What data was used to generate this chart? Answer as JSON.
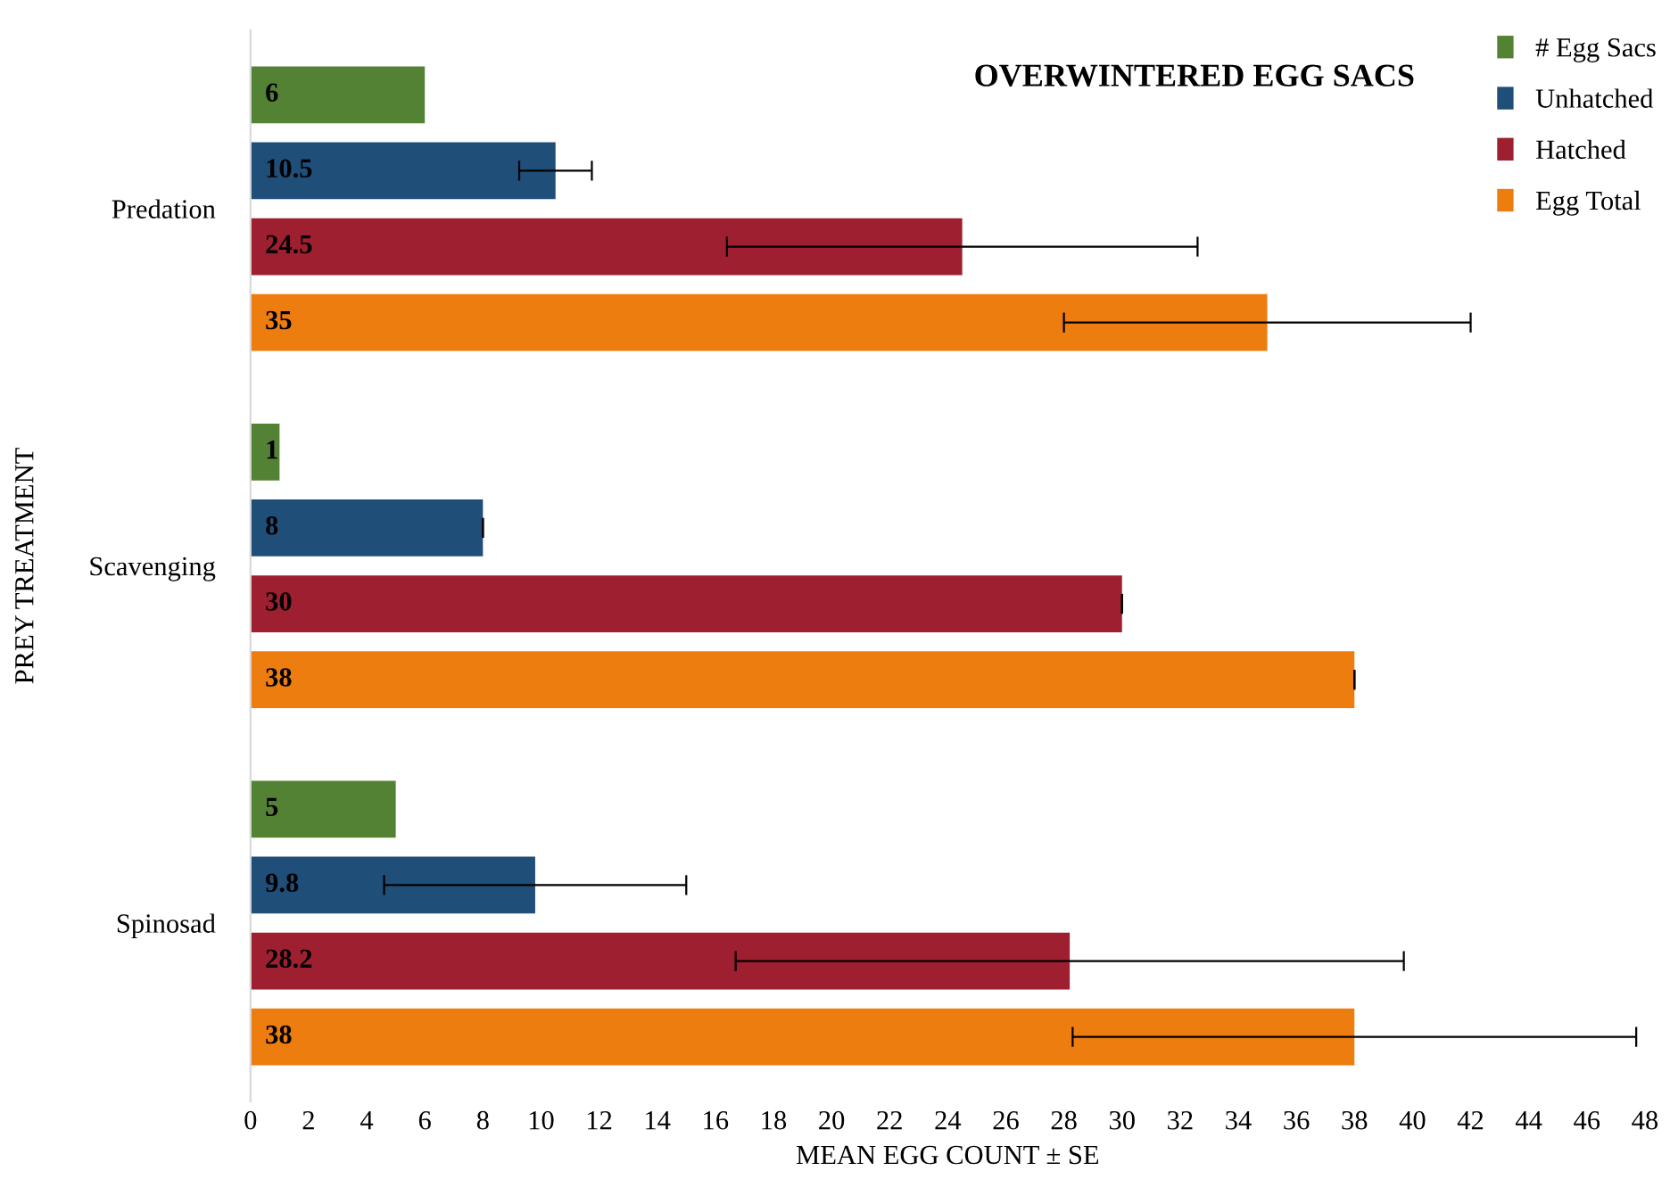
{
  "chart_data": {
    "type": "bar",
    "orientation": "horizontal",
    "title": "OVERWINTERED EGG SACS",
    "xlabel": "MEAN EGG COUNT ± SE",
    "ylabel": "PREY TREATMENT",
    "categories": [
      "Predation",
      "Scavenging",
      "Spinosad"
    ],
    "series": [
      {
        "name": "# Egg Sacs",
        "color": "#548235",
        "values": [
          6,
          1,
          5
        ]
      },
      {
        "name": "Unhatched",
        "color": "#1f4e79",
        "values": [
          10.5,
          8,
          9.8
        ],
        "errors": [
          1.25,
          0,
          5.2
        ]
      },
      {
        "name": "Hatched",
        "color": "#9e1f2f",
        "values": [
          24.5,
          30,
          28.2
        ],
        "errors": [
          8.1,
          0,
          11.5
        ]
      },
      {
        "name": "Egg Total",
        "color": "#ee7d10",
        "values": [
          35,
          38,
          38
        ],
        "errors": [
          7,
          0,
          9.7
        ]
      }
    ],
    "xlim": [
      0,
      48
    ],
    "xticks": [
      0,
      2,
      4,
      6,
      8,
      10,
      12,
      14,
      16,
      18,
      20,
      22,
      24,
      26,
      28,
      30,
      32,
      34,
      36,
      38,
      40,
      42,
      44,
      46,
      48
    ],
    "data_labels": true,
    "legend": "top right",
    "grid": false
  }
}
